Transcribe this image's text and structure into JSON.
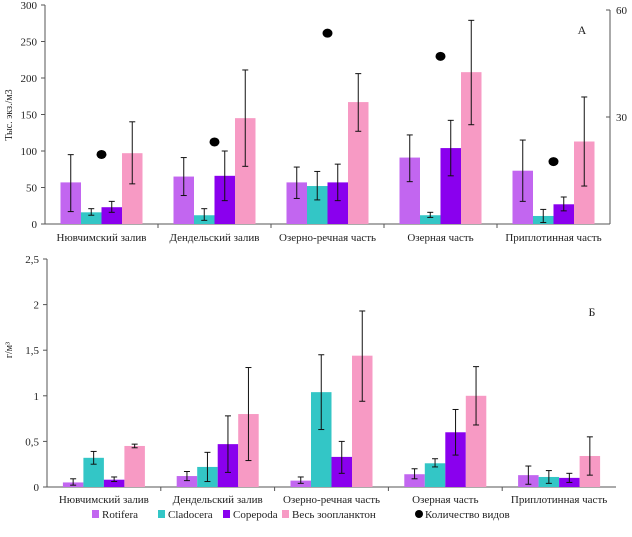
{
  "chart_data": [
    {
      "type": "bar",
      "panel_label": "А",
      "ylabel": "Тыс. экз./м3",
      "ylim": [
        0,
        300
      ],
      "yticks": [
        "0",
        "50",
        "100",
        "150",
        "200",
        "250",
        "300"
      ],
      "y2lim": [
        0,
        60
      ],
      "y2ticks": [
        "30",
        "60"
      ],
      "categories": [
        "Нювчимский залив",
        "Дендельский залив",
        "Озерно-речная часть",
        "Озерная часть",
        "Приплотинная часть"
      ],
      "series": [
        {
          "name": "Rotifera",
          "color": "#c266f0",
          "values": [
            57,
            65,
            57,
            91,
            73
          ],
          "err_low": [
            17,
            39,
            35,
            58,
            31
          ],
          "err_high": [
            95,
            91,
            78,
            122,
            115
          ]
        },
        {
          "name": "Cladocera",
          "color": "#33c6c6",
          "values": [
            16,
            12,
            52,
            12,
            11
          ],
          "err_low": [
            12,
            5,
            33,
            9,
            2
          ],
          "err_high": [
            21,
            21,
            72,
            16,
            20
          ]
        },
        {
          "name": "Copepoda",
          "color": "#8a00ee",
          "values": [
            23,
            66,
            57,
            104,
            27
          ],
          "err_low": [
            16,
            32,
            32,
            66,
            18
          ],
          "err_high": [
            31,
            100,
            82,
            142,
            37
          ]
        },
        {
          "name": "Весь зоопланктон",
          "color": "#f79ac4",
          "values": [
            97,
            145,
            167,
            208,
            113
          ],
          "err_low": [
            55,
            79,
            127,
            136,
            52
          ],
          "err_high": [
            140,
            211,
            206,
            279,
            174
          ]
        }
      ],
      "points": {
        "name": "Количество видов",
        "color": "#000000",
        "axis": "right",
        "values": [
          19.5,
          23,
          53.5,
          47,
          17.5
        ]
      }
    },
    {
      "type": "bar",
      "panel_label": "Б",
      "ylabel": "г/м³",
      "ylim": [
        0,
        2.5
      ],
      "yticks": [
        "0",
        "0,5",
        "1",
        "1,5",
        "2",
        "2,5"
      ],
      "categories": [
        "Нювчимский залив",
        "Дендельский залив",
        "Озерно-речная часть",
        "Озерная часть",
        "Приплотинная часть"
      ],
      "series": [
        {
          "name": "Rotifera",
          "color": "#c266f0",
          "values": [
            0.05,
            0.12,
            0.07,
            0.14,
            0.13
          ],
          "err_low": [
            0.02,
            0.07,
            0.04,
            0.09,
            0.03
          ],
          "err_high": [
            0.09,
            0.17,
            0.11,
            0.2,
            0.23
          ]
        },
        {
          "name": "Cladocera",
          "color": "#33c6c6",
          "values": [
            0.32,
            0.22,
            1.04,
            0.26,
            0.11
          ],
          "err_low": [
            0.25,
            0.06,
            0.63,
            0.22,
            0.04
          ],
          "err_high": [
            0.39,
            0.38,
            1.45,
            0.31,
            0.18
          ]
        },
        {
          "name": "Copepoda",
          "color": "#8a00ee",
          "values": [
            0.08,
            0.47,
            0.33,
            0.6,
            0.1
          ],
          "err_low": [
            0.06,
            0.16,
            0.15,
            0.35,
            0.05
          ],
          "err_high": [
            0.11,
            0.78,
            0.5,
            0.85,
            0.15
          ]
        },
        {
          "name": "Весь зоопланктон",
          "color": "#f79ac4",
          "values": [
            0.45,
            0.8,
            1.44,
            1.0,
            0.34
          ],
          "err_low": [
            0.43,
            0.29,
            0.94,
            0.68,
            0.13
          ],
          "err_high": [
            0.47,
            1.31,
            1.93,
            1.32,
            0.55
          ]
        }
      ]
    }
  ],
  "legend": {
    "placement": "bottom",
    "items": [
      {
        "label": "Rotifera",
        "color": "#c266f0",
        "shape": "square"
      },
      {
        "label": "Cladocera",
        "color": "#33c6c6",
        "shape": "square"
      },
      {
        "label": "Copepoda",
        "color": "#8a00ee",
        "shape": "square"
      },
      {
        "label": "Весь зоопланктон",
        "color": "#f79ac4",
        "shape": "square"
      },
      {
        "label": "Количество видов",
        "color": "#000000",
        "shape": "circle"
      }
    ]
  }
}
